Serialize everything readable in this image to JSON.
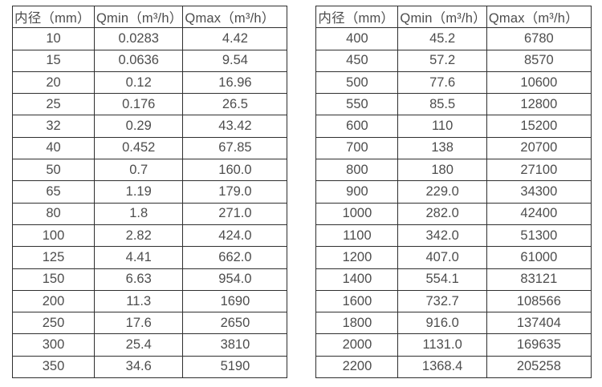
{
  "colors": {
    "background": "#ffffff",
    "table_border": "#2f2f2f",
    "text": "#4d4d4d"
  },
  "tables": [
    {
      "id": "small-diameters",
      "headers": [
        "内径（mm）",
        "Qmin（m³/h）",
        "Qmax（m³/h）"
      ],
      "rows": [
        [
          "10",
          "0.0283",
          "4.42"
        ],
        [
          "15",
          "0.0636",
          "9.54"
        ],
        [
          "20",
          "0.12",
          "16.96"
        ],
        [
          "25",
          "0.176",
          "26.5"
        ],
        [
          "32",
          "0.29",
          "43.42"
        ],
        [
          "40",
          "0.452",
          "67.85"
        ],
        [
          "50",
          "0.7",
          "160.0"
        ],
        [
          "65",
          "1.19",
          "179.0"
        ],
        [
          "80",
          "1.8",
          "271.0"
        ],
        [
          "100",
          "2.82",
          "424.0"
        ],
        [
          "125",
          "4.41",
          "662.0"
        ],
        [
          "150",
          "6.63",
          "954.0"
        ],
        [
          "200",
          "11.3",
          "1690"
        ],
        [
          "250",
          "17.6",
          "2650"
        ],
        [
          "300",
          "25.4",
          "3810"
        ],
        [
          "350",
          "34.6",
          "5190"
        ]
      ]
    },
    {
      "id": "large-diameters",
      "headers": [
        "内径（mm）",
        "Qmin（m³/h）",
        "Qmax（m³/h）"
      ],
      "rows": [
        [
          "400",
          "45.2",
          "6780"
        ],
        [
          "450",
          "57.2",
          "8570"
        ],
        [
          "500",
          "77.6",
          "10600"
        ],
        [
          "550",
          "85.5",
          "12800"
        ],
        [
          "600",
          "110",
          "15200"
        ],
        [
          "700",
          "138",
          "20700"
        ],
        [
          "800",
          "180",
          "27100"
        ],
        [
          "900",
          "229.0",
          "34300"
        ],
        [
          "1000",
          "282.0",
          "42400"
        ],
        [
          "1100",
          "342.0",
          "51300"
        ],
        [
          "1200",
          "407.0",
          "61000"
        ],
        [
          "1400",
          "554.1",
          "83121"
        ],
        [
          "1600",
          "732.7",
          "108566"
        ],
        [
          "1800",
          "916.0",
          "137404"
        ],
        [
          "2000",
          "1131.0",
          "169635"
        ],
        [
          "2200",
          "1368.4",
          "205258"
        ]
      ]
    }
  ]
}
